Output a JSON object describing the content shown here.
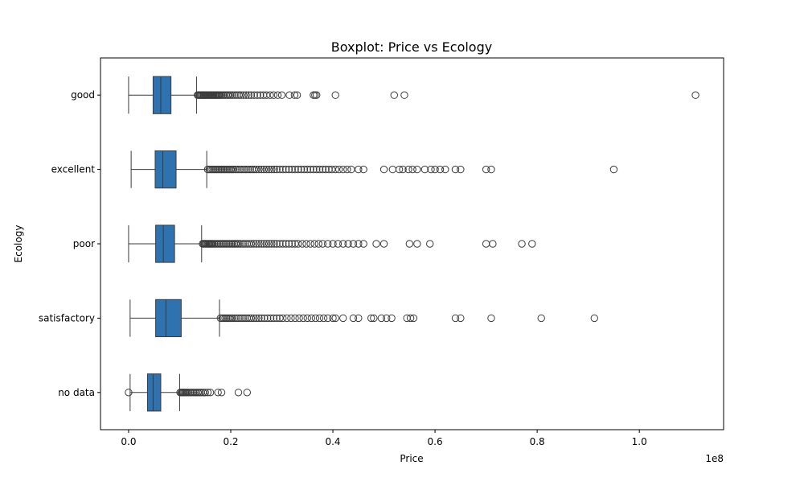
{
  "chart_data": {
    "type": "boxplot",
    "orientation": "horizontal",
    "title": "Boxplot: Price vs Ecology",
    "xlabel": "Price",
    "ylabel": "Ecology",
    "x_offset_label": "1e8",
    "xlim": [
      -0.055,
      1.165
    ],
    "x_ticks": [
      {
        "value": 0.0,
        "label": "0.0"
      },
      {
        "value": 0.2,
        "label": "0.2"
      },
      {
        "value": 0.4,
        "label": "0.4"
      },
      {
        "value": 0.6,
        "label": "0.6"
      },
      {
        "value": 0.8,
        "label": "0.8"
      },
      {
        "value": 1.0,
        "label": "1.0"
      }
    ],
    "grid": false,
    "box_color": "#2e72b0",
    "categories": [
      "good",
      "excellent",
      "poor",
      "satisfactory",
      "no data"
    ],
    "series": [
      {
        "category": "good",
        "whisker_low": 0.0,
        "q1": 0.048,
        "median": 0.063,
        "q3": 0.083,
        "whisker_high": 0.133,
        "outliers": [
          0.135,
          0.137,
          0.139,
          0.141,
          0.143,
          0.145,
          0.147,
          0.149,
          0.151,
          0.153,
          0.155,
          0.157,
          0.159,
          0.161,
          0.163,
          0.165,
          0.167,
          0.169,
          0.171,
          0.173,
          0.175,
          0.177,
          0.179,
          0.182,
          0.185,
          0.188,
          0.191,
          0.194,
          0.197,
          0.2,
          0.204,
          0.208,
          0.212,
          0.216,
          0.22,
          0.225,
          0.23,
          0.235,
          0.24,
          0.246,
          0.252,
          0.258,
          0.264,
          0.27,
          0.277,
          0.284,
          0.292,
          0.3,
          0.315,
          0.325,
          0.33,
          0.362,
          0.365,
          0.368,
          0.405,
          0.52,
          0.54,
          1.11
        ]
      },
      {
        "category": "excellent",
        "whisker_low": 0.005,
        "q1": 0.052,
        "median": 0.067,
        "q3": 0.093,
        "whisker_high": 0.153,
        "outliers": [
          0.155,
          0.158,
          0.161,
          0.164,
          0.167,
          0.17,
          0.173,
          0.176,
          0.179,
          0.182,
          0.185,
          0.188,
          0.191,
          0.194,
          0.197,
          0.2,
          0.203,
          0.206,
          0.21,
          0.214,
          0.218,
          0.222,
          0.226,
          0.23,
          0.234,
          0.238,
          0.242,
          0.246,
          0.25,
          0.255,
          0.26,
          0.265,
          0.27,
          0.275,
          0.28,
          0.285,
          0.29,
          0.296,
          0.302,
          0.308,
          0.314,
          0.32,
          0.326,
          0.332,
          0.338,
          0.344,
          0.35,
          0.356,
          0.362,
          0.368,
          0.374,
          0.38,
          0.386,
          0.392,
          0.398,
          0.405,
          0.412,
          0.42,
          0.428,
          0.436,
          0.45,
          0.46,
          0.5,
          0.517,
          0.53,
          0.537,
          0.548,
          0.556,
          0.565,
          0.58,
          0.592,
          0.6,
          0.61,
          0.62,
          0.64,
          0.65,
          0.7,
          0.71,
          0.95
        ]
      },
      {
        "category": "poor",
        "whisker_low": 0.0,
        "q1": 0.053,
        "median": 0.068,
        "q3": 0.09,
        "whisker_high": 0.143,
        "outliers": [
          0.145,
          0.147,
          0.149,
          0.151,
          0.153,
          0.155,
          0.157,
          0.159,
          0.161,
          0.163,
          0.165,
          0.168,
          0.171,
          0.174,
          0.177,
          0.18,
          0.183,
          0.186,
          0.189,
          0.192,
          0.195,
          0.198,
          0.201,
          0.204,
          0.207,
          0.21,
          0.213,
          0.216,
          0.22,
          0.224,
          0.228,
          0.232,
          0.236,
          0.24,
          0.245,
          0.25,
          0.255,
          0.26,
          0.265,
          0.27,
          0.275,
          0.28,
          0.285,
          0.29,
          0.296,
          0.302,
          0.308,
          0.314,
          0.32,
          0.326,
          0.332,
          0.34,
          0.348,
          0.356,
          0.364,
          0.372,
          0.38,
          0.39,
          0.4,
          0.41,
          0.42,
          0.43,
          0.44,
          0.45,
          0.46,
          0.485,
          0.5,
          0.55,
          0.565,
          0.59,
          0.7,
          0.713,
          0.77,
          0.79
        ]
      },
      {
        "category": "satisfactory",
        "whisker_low": 0.003,
        "q1": 0.053,
        "median": 0.073,
        "q3": 0.103,
        "whisker_high": 0.178,
        "outliers": [
          0.18,
          0.183,
          0.186,
          0.189,
          0.192,
          0.195,
          0.198,
          0.201,
          0.204,
          0.208,
          0.212,
          0.216,
          0.22,
          0.224,
          0.228,
          0.232,
          0.236,
          0.24,
          0.245,
          0.25,
          0.255,
          0.26,
          0.266,
          0.272,
          0.278,
          0.284,
          0.29,
          0.296,
          0.302,
          0.31,
          0.318,
          0.326,
          0.334,
          0.342,
          0.35,
          0.358,
          0.366,
          0.374,
          0.382,
          0.39,
          0.4,
          0.405,
          0.42,
          0.44,
          0.45,
          0.475,
          0.48,
          0.495,
          0.505,
          0.515,
          0.545,
          0.552,
          0.558,
          0.64,
          0.65,
          0.71,
          0.808,
          0.912
        ]
      },
      {
        "category": "no data",
        "whisker_low": 0.003,
        "q1": 0.037,
        "median": 0.048,
        "q3": 0.063,
        "whisker_high": 0.1,
        "outliers": [
          0.0,
          0.101,
          0.103,
          0.105,
          0.107,
          0.109,
          0.111,
          0.113,
          0.115,
          0.118,
          0.121,
          0.124,
          0.127,
          0.13,
          0.133,
          0.136,
          0.139,
          0.142,
          0.146,
          0.15,
          0.155,
          0.16,
          0.175,
          0.182,
          0.215,
          0.232
        ]
      }
    ]
  }
}
